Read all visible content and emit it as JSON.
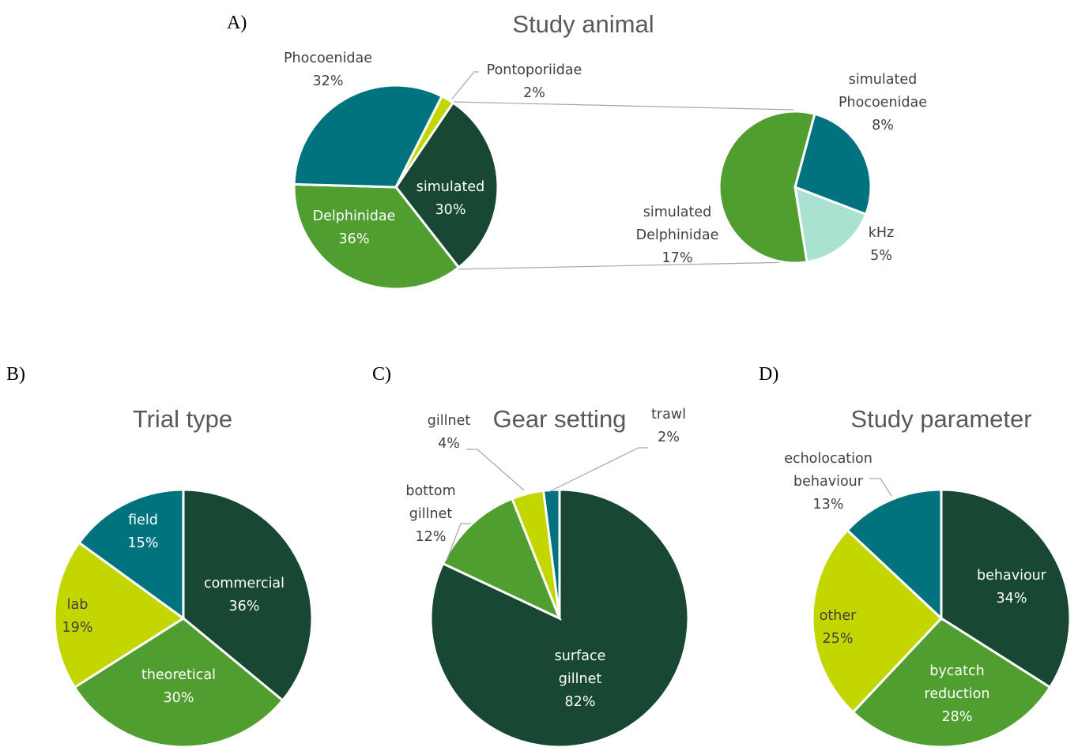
{
  "colors": {
    "dark_green": "#184733",
    "green": "#519e30",
    "lime": "#c3d600",
    "teal": "#00737e",
    "mint": "#a9e2d0",
    "title_grey": "#595959",
    "label_grey": "#404040",
    "leader_grey": "#a6a6a6"
  },
  "chart_data": [
    {
      "panel": "A)",
      "type": "pie",
      "title": "Study animal",
      "slices": [
        {
          "name": "simulated",
          "value": 30,
          "label": "30%",
          "color": "#184733",
          "text": "light"
        },
        {
          "name": "Delphinidae",
          "value": 36,
          "label": "36%",
          "color": "#519e30",
          "text": "light"
        },
        {
          "name": "Phocoenidae",
          "value": 32,
          "label": "32%",
          "color": "#00737e",
          "text": "dark"
        },
        {
          "name": "Pontoporiidae",
          "value": 2,
          "label": "2%",
          "color": "#c3d600",
          "text": "dark"
        }
      ],
      "breakout": {
        "of": "simulated",
        "slices": [
          {
            "name": "simulated Phocoenidae",
            "value": 8,
            "label": "8%",
            "color": "#00737e"
          },
          {
            "name": "kHz",
            "value": 5,
            "label": "5%",
            "color": "#a9e2d0"
          },
          {
            "name": "simulated Delphinidae",
            "value": 17,
            "label": "17%",
            "color": "#519e30"
          }
        ]
      }
    },
    {
      "panel": "B)",
      "type": "pie",
      "title": "Trial type",
      "slices": [
        {
          "name": "commercial",
          "value": 36,
          "label": "36%",
          "color": "#184733",
          "text": "light"
        },
        {
          "name": "theoretical",
          "value": 30,
          "label": "30%",
          "color": "#519e30",
          "text": "light"
        },
        {
          "name": "lab",
          "value": 19,
          "label": "19%",
          "color": "#c3d600",
          "text": "dark"
        },
        {
          "name": "field",
          "value": 15,
          "label": "15%",
          "color": "#00737e",
          "text": "light"
        }
      ]
    },
    {
      "panel": "C)",
      "type": "pie",
      "title": "Gear setting",
      "slices": [
        {
          "name": "surface gillnet",
          "value": 82,
          "label": "82%",
          "color": "#184733",
          "text": "light"
        },
        {
          "name": "bottom gillnet",
          "value": 12,
          "label": "12%",
          "color": "#519e30",
          "text": "dark"
        },
        {
          "name": "gillnet",
          "value": 4,
          "label": "4%",
          "color": "#c3d600",
          "text": "dark"
        },
        {
          "name": "trawl",
          "value": 2,
          "label": "2%",
          "color": "#00737e",
          "text": "dark"
        }
      ]
    },
    {
      "panel": "D)",
      "type": "pie",
      "title": "Study parameter",
      "slices": [
        {
          "name": "behaviour",
          "value": 34,
          "label": "34%",
          "color": "#184733",
          "text": "light"
        },
        {
          "name": "bycatch reduction",
          "value": 28,
          "label": "28%",
          "color": "#519e30",
          "text": "light"
        },
        {
          "name": "other",
          "value": 25,
          "label": "25%",
          "color": "#c3d600",
          "text": "dark"
        },
        {
          "name": "echolocation behaviour",
          "value": 13,
          "label": "13%",
          "color": "#00737e",
          "text": "dark"
        }
      ]
    }
  ]
}
